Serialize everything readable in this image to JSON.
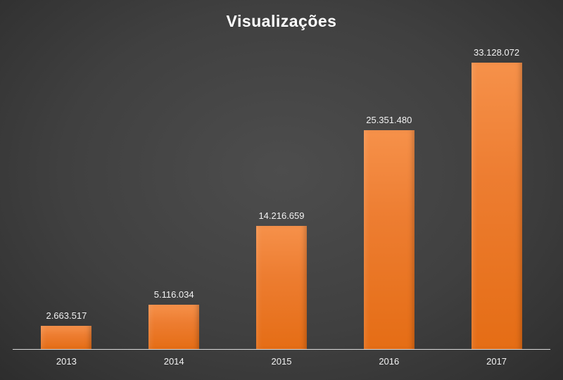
{
  "chart_data": {
    "type": "bar",
    "title": "Visualizações",
    "categories": [
      "2013",
      "2014",
      "2015",
      "2016",
      "2017"
    ],
    "values": [
      2663517,
      5116034,
      14216659,
      25351480,
      33128072
    ],
    "value_labels": [
      "2.663.517",
      "5.116.034",
      "14.216.659",
      "25.351.480",
      "33.128.072"
    ],
    "xlabel": "",
    "ylabel": "",
    "ylim": [
      0,
      33128072
    ],
    "grid": false,
    "legend_position": "none",
    "colors": {
      "bar": "#ED7D31",
      "background": "#404040",
      "axis_line": "#D9D9D9",
      "text": "#F2F2F2",
      "title_text": "#FFFFFF"
    }
  }
}
